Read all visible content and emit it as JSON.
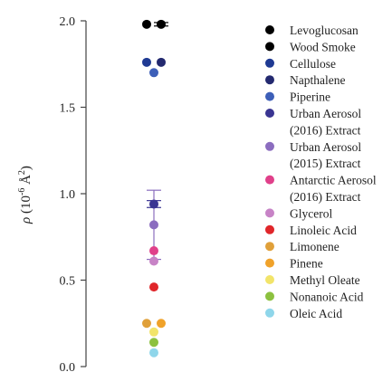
{
  "chart_data": {
    "type": "scatter",
    "ylabel_symbol": "ρ",
    "ylabel_units_prefix": "(10",
    "ylabel_units_exponent": "-6",
    "ylabel_units_suffix": " Å",
    "ylabel_units_square": "2",
    "ylabel_units_close": ")",
    "ylim": [
      0.0,
      2.0
    ],
    "yticks": [
      "0.0",
      "0.5",
      "1.0",
      "1.5",
      "2.0"
    ],
    "grid": false,
    "legend_position": "right",
    "series": [
      {
        "name": "Levoglucosan",
        "color": "#000000",
        "y": [
          1.98
        ],
        "x": [
          -1
        ]
      },
      {
        "name": "Wood Smoke",
        "color": "#000000",
        "y": [
          1.98
        ],
        "x": [
          1
        ],
        "err": 0.01
      },
      {
        "name": "Cellulose",
        "color": "#1f3a93",
        "y": [
          1.76
        ],
        "x": [
          -1
        ]
      },
      {
        "name": "Napthalene",
        "color": "#23296f",
        "y": [
          1.76
        ],
        "x": [
          1
        ]
      },
      {
        "name": "Piperine",
        "color": "#3d5fb8",
        "y": [
          1.7
        ],
        "x": [
          0
        ]
      },
      {
        "name": "Urban Aerosol (2016) Extract",
        "color": "#3a3592",
        "y": [
          0.94
        ],
        "x": [
          0
        ],
        "err": 0.02
      },
      {
        "name": "Urban Aerosol (2015) Extract",
        "color": "#8b6dbf",
        "y": [
          0.82
        ],
        "x": [
          0
        ],
        "err": 0.2
      },
      {
        "name": "Antarctic Aerosol (2016) Extract",
        "color": "#e0408a",
        "y": [
          0.67
        ],
        "x": [
          0
        ]
      },
      {
        "name": "Glycerol",
        "color": "#c783c6",
        "y": [
          0.61
        ],
        "x": [
          0
        ]
      },
      {
        "name": "Linoleic Acid",
        "color": "#e0262a",
        "y": [
          0.46
        ],
        "x": [
          0
        ]
      },
      {
        "name": "Limonene",
        "color": "#e0a03a",
        "y": [
          0.25
        ],
        "x": [
          -1
        ]
      },
      {
        "name": "Pinene",
        "color": "#f0a22a",
        "y": [
          0.25
        ],
        "x": [
          1
        ]
      },
      {
        "name": "Methyl Oleate",
        "color": "#f2e46a",
        "y": [
          0.2
        ],
        "x": [
          0
        ]
      },
      {
        "name": "Nonanoic Acid",
        "color": "#8cc13f",
        "y": [
          0.14
        ],
        "x": [
          0
        ]
      },
      {
        "name": "Oleic Acid",
        "color": "#8fd6ea",
        "y": [
          0.08
        ],
        "x": [
          0
        ]
      }
    ],
    "legend": [
      {
        "lines": [
          "Levoglucosan"
        ],
        "color": "#000000"
      },
      {
        "lines": [
          "Wood Smoke"
        ],
        "color": "#000000"
      },
      {
        "lines": [
          "Cellulose"
        ],
        "color": "#1f3a93"
      },
      {
        "lines": [
          "Napthalene"
        ],
        "color": "#23296f"
      },
      {
        "lines": [
          "Piperine"
        ],
        "color": "#3d5fb8"
      },
      {
        "lines": [
          "Urban Aerosol",
          "(2016) Extract"
        ],
        "color": "#3a3592"
      },
      {
        "lines": [
          "Urban Aerosol",
          "(2015) Extract"
        ],
        "color": "#8b6dbf"
      },
      {
        "lines": [
          "Antarctic Aerosol",
          "(2016) Extract"
        ],
        "color": "#e0408a"
      },
      {
        "lines": [
          "Glycerol"
        ],
        "color": "#c783c6"
      },
      {
        "lines": [
          "Linoleic Acid"
        ],
        "color": "#e0262a"
      },
      {
        "lines": [
          "Limonene"
        ],
        "color": "#e0a03a"
      },
      {
        "lines": [
          "Pinene"
        ],
        "color": "#f0a22a"
      },
      {
        "lines": [
          "Methyl Oleate"
        ],
        "color": "#f2e46a"
      },
      {
        "lines": [
          "Nonanoic Acid"
        ],
        "color": "#8cc13f"
      },
      {
        "lines": [
          "Oleic Acid"
        ],
        "color": "#8fd6ea"
      }
    ]
  }
}
